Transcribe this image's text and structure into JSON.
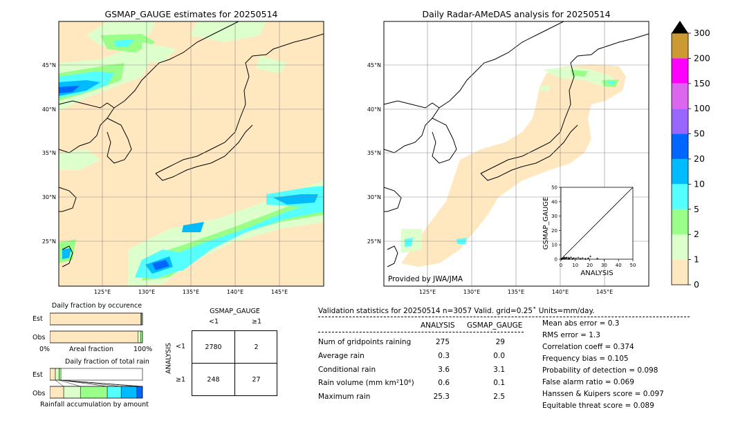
{
  "left_map": {
    "title": "GSMAP_GAUGE estimates for 20250514",
    "lat_labels": [
      "45°N",
      "40°N",
      "35°N",
      "30°N",
      "25°N"
    ],
    "lon_labels": [
      "125°E",
      "130°E",
      "135°E",
      "140°E",
      "145°E"
    ]
  },
  "right_map": {
    "title": "Daily Radar-AMeDAS analysis for 20250514",
    "lat_labels": [
      "45°N",
      "40°N",
      "35°N",
      "30°N",
      "25°N"
    ],
    "lon_labels": [
      "125°E",
      "130°E",
      "135°E",
      "140°E",
      "145°E"
    ],
    "credit": "Provided by JWA/JMA"
  },
  "colorbar": {
    "ticks": [
      "300",
      "200",
      "150",
      "100",
      "50",
      "20",
      "10",
      "5",
      "2",
      "1",
      "0"
    ],
    "colors": [
      "#cc9933",
      "#ff00ff",
      "#dd66ee",
      "#9966ff",
      "#0066ff",
      "#00bbff",
      "#55ffff",
      "#99ff88",
      "#ddffcc",
      "#ffe8c0"
    ]
  },
  "chart_data": [
    {
      "type": "scatter",
      "xlabel": "ANALYSIS",
      "ylabel": "GSMAP_GAUGE",
      "xlim": [
        0,
        50
      ],
      "ylim": [
        0,
        50
      ],
      "xticks": [
        "0",
        "10",
        "20",
        "30",
        "40",
        "50"
      ],
      "yticks": [
        "0",
        "10",
        "20",
        "30",
        "40",
        "50"
      ],
      "points": [
        [
          0.3,
          0.2
        ],
        [
          0.6,
          0.1
        ],
        [
          1.0,
          0.4
        ],
        [
          1.5,
          0.8
        ],
        [
          2.0,
          0.3
        ],
        [
          2.5,
          1.2
        ],
        [
          3.0,
          0.5
        ],
        [
          3.6,
          0.6
        ],
        [
          4.2,
          1.1
        ],
        [
          5.0,
          0.2
        ],
        [
          5.5,
          0.9
        ],
        [
          6.0,
          0.4
        ],
        [
          7.0,
          1.3
        ],
        [
          8.0,
          0.3
        ],
        [
          9.0,
          0.7
        ],
        [
          10.5,
          0.5
        ],
        [
          12.0,
          1.0
        ],
        [
          13.5,
          0.4
        ],
        [
          15.0,
          0.8
        ],
        [
          17.0,
          0.3
        ],
        [
          19.0,
          0.6
        ],
        [
          20.5,
          1.9
        ],
        [
          25.3,
          0.4
        ]
      ]
    },
    {
      "type": "bar",
      "title": "Daily fraction by occurence",
      "categories": [
        "Est",
        "Obs"
      ],
      "xlabel": "Areal fraction",
      "x_tick_left": "0%",
      "x_tick_right": "100%",
      "series": [
        {
          "values": [
            0.98,
            0.95
          ],
          "color": "#ffe8c0"
        },
        {
          "values": [
            0.01,
            0.03
          ],
          "color": "#ddffcc"
        },
        {
          "values": [
            0.01,
            0.02
          ],
          "color": "#99ff88"
        }
      ]
    },
    {
      "type": "bar",
      "title": "Daily fraction of total rain",
      "categories": [
        "Est",
        "Obs"
      ],
      "xlabel": "Rainfall accumulation by amount",
      "series": [
        {
          "values": [
            0.06,
            0.15
          ],
          "color": "#ffe8c0"
        },
        {
          "values": [
            0.04,
            0.18
          ],
          "color": "#ddffcc"
        },
        {
          "values": [
            0.02,
            0.29
          ],
          "color": "#99ff88"
        },
        {
          "values": [
            0.0,
            0.15
          ],
          "color": "#55ffff"
        },
        {
          "values": [
            0.0,
            0.17
          ],
          "color": "#00bbff"
        },
        {
          "values": [
            0.0,
            0.06
          ],
          "color": "#0066ff"
        }
      ]
    },
    {
      "type": "table",
      "col_header": "GSMAP_GAUGE",
      "row_header": "ANALYSIS",
      "col_labels": [
        "<1",
        "≥1"
      ],
      "row_labels": [
        "<1",
        "≥1"
      ],
      "cells": [
        [
          "2780",
          "2"
        ],
        [
          "248",
          "27"
        ]
      ]
    }
  ],
  "stats": {
    "header": "Validation statistics for 20250514  n=3057 Valid. grid=0.25˚ Units=mm/day.",
    "col_analysis": "ANALYSIS",
    "col_gsmap": "GSMAP_GAUGE",
    "rows": [
      {
        "label": "Num of gridpoints raining",
        "analysis": "275",
        "gsmap": "29"
      },
      {
        "label": "Average rain",
        "analysis": "0.3",
        "gsmap": "0.0"
      },
      {
        "label": "Conditional rain",
        "analysis": "3.6",
        "gsmap": "3.1"
      },
      {
        "label": "Rain volume (mm km²10⁶)",
        "analysis": "0.6",
        "gsmap": "0.1"
      },
      {
        "label": "Maximum rain",
        "analysis": "25.3",
        "gsmap": "2.5"
      }
    ],
    "scores": [
      "Mean abs error =    0.3",
      "RMS error =    1.3",
      "Correlation coeff =  0.374",
      "Frequency bias =  0.105",
      "Probability of detection =  0.098",
      "False alarm ratio =  0.069",
      "Hanssen & Kuipers score =  0.097",
      "Equitable threat score =  0.089"
    ]
  }
}
